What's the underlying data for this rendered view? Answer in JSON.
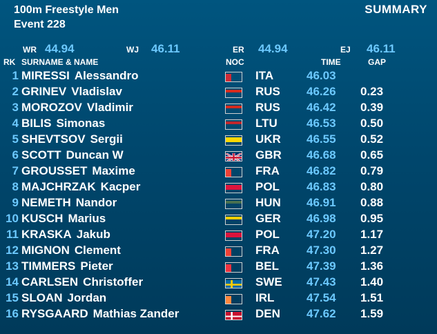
{
  "header": {
    "event_name": "100m Freestyle Men",
    "event_number": "Event 228",
    "summary_label": "SUMMARY"
  },
  "records": {
    "wr_label": "WR",
    "wr_value": "44.94",
    "wj_label": "WJ",
    "wj_value": "46.11",
    "er_label": "ER",
    "er_value": "44.94",
    "ej_label": "EJ",
    "ej_value": "46.11"
  },
  "columns": {
    "rank": "RK",
    "name": "SURNAME & NAME",
    "noc": "NOC",
    "time": "TIME",
    "gap": "GAP"
  },
  "results": [
    {
      "rank": "1",
      "surname": "MIRESSI",
      "first": "Alessandro",
      "noc": "ITA",
      "flag": "italy",
      "time": "46.03",
      "gap": ""
    },
    {
      "rank": "2",
      "surname": "GRINEV",
      "first": "Vladislav",
      "noc": "RUS",
      "flag": "russia",
      "time": "46.26",
      "gap": "0.23"
    },
    {
      "rank": "3",
      "surname": "MOROZOV",
      "first": "Vladimir",
      "noc": "RUS",
      "flag": "russia",
      "time": "46.42",
      "gap": "0.39"
    },
    {
      "rank": "4",
      "surname": "BILIS",
      "first": "Simonas",
      "noc": "LTU",
      "flag": "lithuania",
      "time": "46.53",
      "gap": "0.50"
    },
    {
      "rank": "5",
      "surname": "SHEVTSOV",
      "first": "Sergii",
      "noc": "UKR",
      "flag": "ukraine",
      "time": "46.55",
      "gap": "0.52"
    },
    {
      "rank": "6",
      "surname": "SCOTT",
      "first": "Duncan W",
      "noc": "GBR",
      "flag": "uk",
      "time": "46.68",
      "gap": "0.65"
    },
    {
      "rank": "7",
      "surname": "GROUSSET",
      "first": "Maxime",
      "noc": "FRA",
      "flag": "france",
      "time": "46.82",
      "gap": "0.79"
    },
    {
      "rank": "8",
      "surname": "MAJCHRZAK",
      "first": "Kacper",
      "noc": "POL",
      "flag": "poland",
      "time": "46.83",
      "gap": "0.80"
    },
    {
      "rank": "9",
      "surname": "NEMETH",
      "first": "Nandor",
      "noc": "HUN",
      "flag": "hungary",
      "time": "46.91",
      "gap": "0.88"
    },
    {
      "rank": "10",
      "surname": "KUSCH",
      "first": "Marius",
      "noc": "GER",
      "flag": "germany",
      "time": "46.98",
      "gap": "0.95"
    },
    {
      "rank": "11",
      "surname": "KRASKA",
      "first": "Jakub",
      "noc": "POL",
      "flag": "poland",
      "time": "47.20",
      "gap": "1.17"
    },
    {
      "rank": "12",
      "surname": "MIGNON",
      "first": "Clement",
      "noc": "FRA",
      "flag": "france",
      "time": "47.30",
      "gap": "1.27"
    },
    {
      "rank": "13",
      "surname": "TIMMERS",
      "first": "Pieter",
      "noc": "BEL",
      "flag": "belgium",
      "time": "47.39",
      "gap": "1.36"
    },
    {
      "rank": "14",
      "surname": "CARLSEN",
      "first": "Christoffer",
      "noc": "SWE",
      "flag": "sweden",
      "time": "47.43",
      "gap": "1.40"
    },
    {
      "rank": "15",
      "surname": "SLOAN",
      "first": "Jordan",
      "noc": "IRL",
      "flag": "ireland",
      "time": "47.54",
      "gap": "1.51"
    },
    {
      "rank": "16",
      "surname": "RYSGAARD",
      "first": "Mathias Zander",
      "noc": "DEN",
      "flag": "denmark",
      "time": "47.62",
      "gap": "1.59"
    }
  ],
  "colors": {
    "background_top": "#00557f",
    "background_bottom": "#003a5a",
    "accent": "#6cc9ff",
    "text": "#ffffff"
  }
}
